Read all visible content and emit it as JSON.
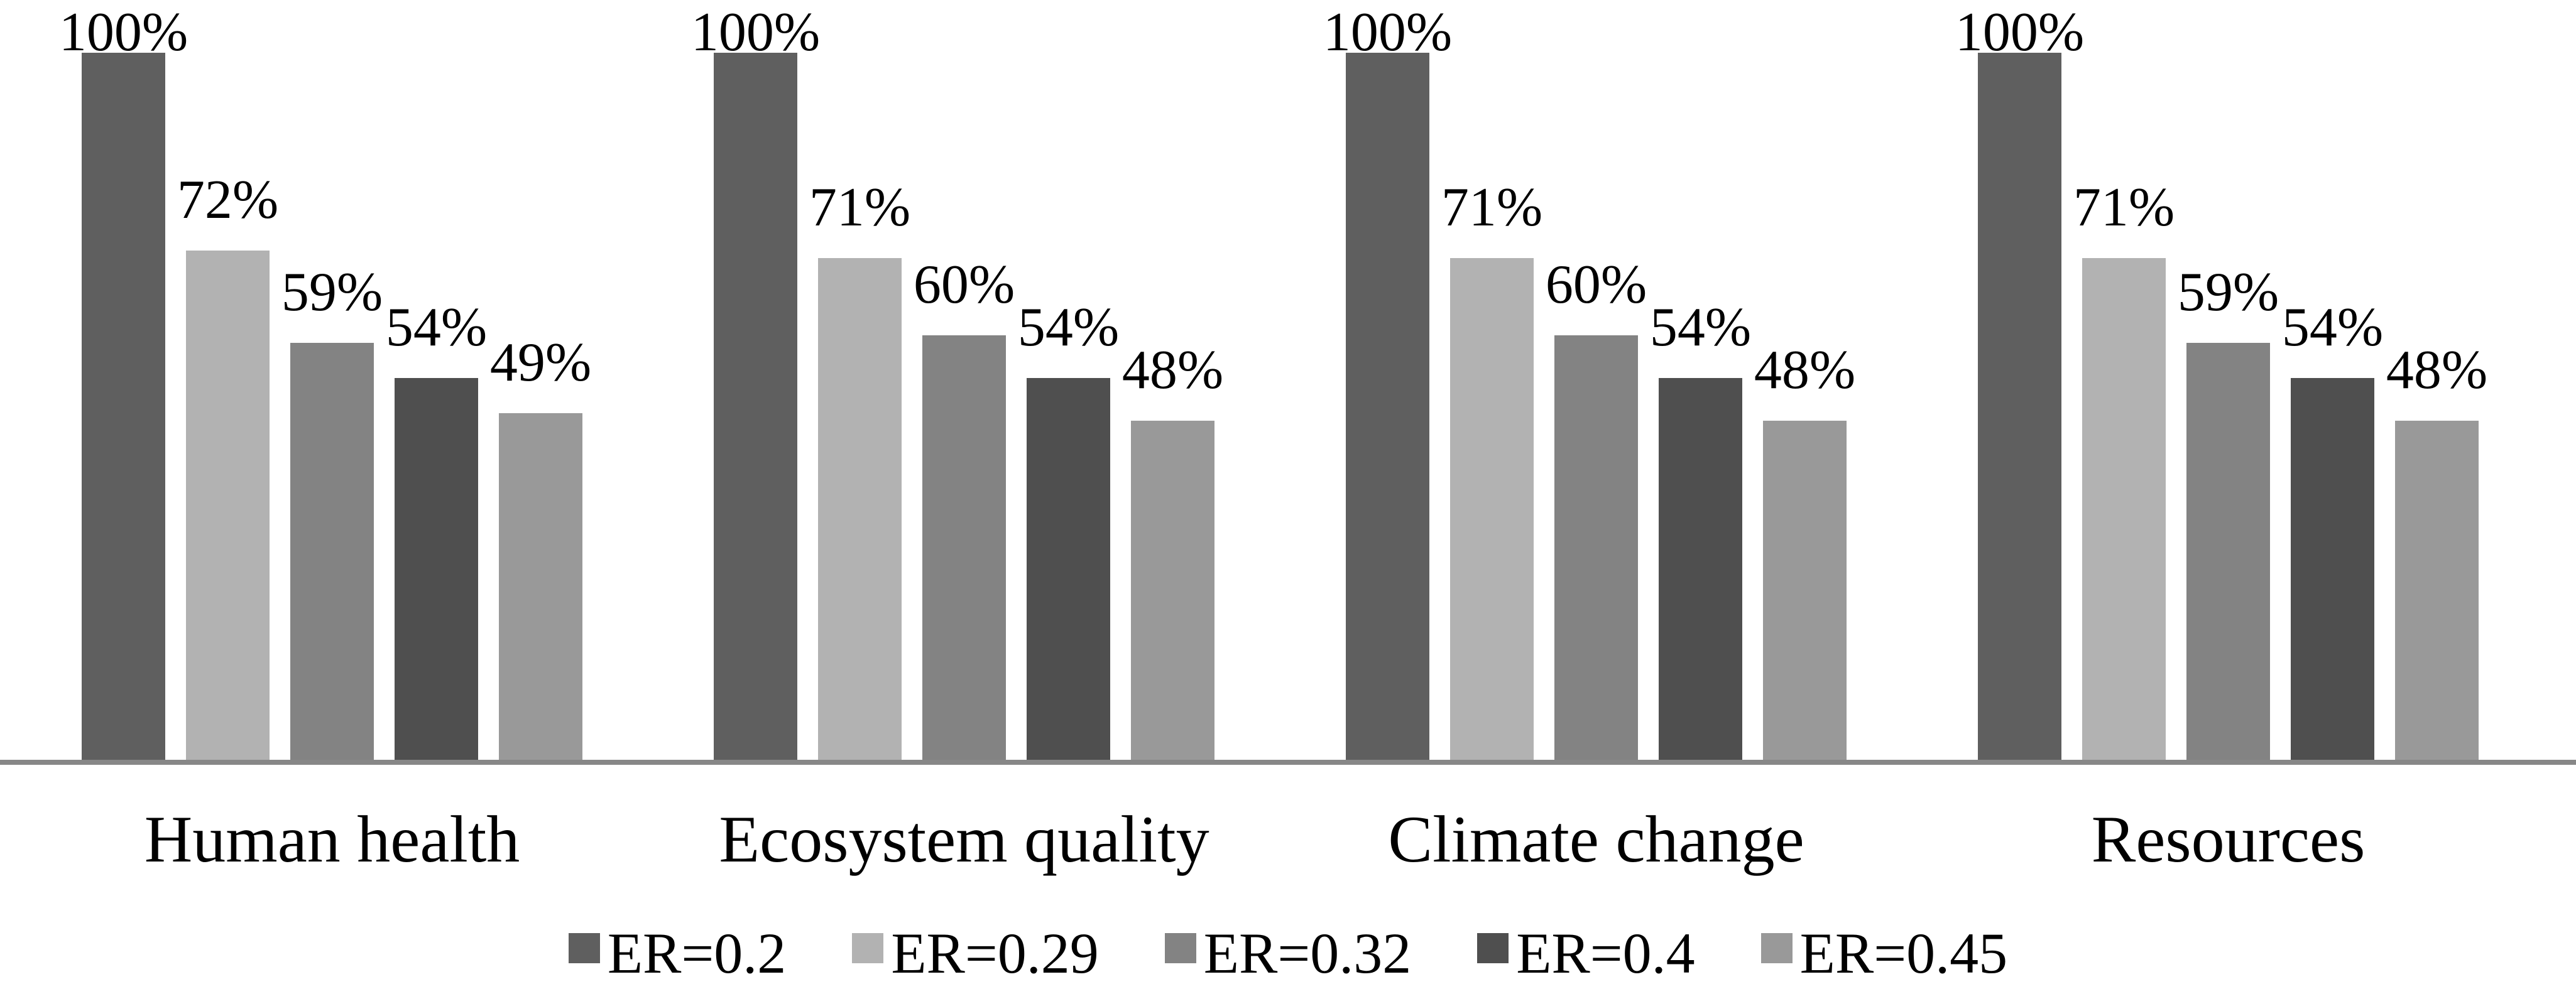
{
  "chart_data": {
    "type": "bar",
    "title": "",
    "xlabel": "",
    "ylabel": "",
    "ylim": [
      0,
      100
    ],
    "grid": false,
    "legend_position": "bottom",
    "axis_color": "#878787",
    "background_color": "#ffffff",
    "categories": [
      "Human health",
      "Ecosystem quality",
      "Climate change",
      "Resources"
    ],
    "series": [
      {
        "name": "ER=0.2",
        "color": "#5f5f5f",
        "values": [
          100,
          100,
          100,
          100
        ]
      },
      {
        "name": "ER=0.29",
        "color": "#b2b2b2",
        "values": [
          72,
          71,
          71,
          71
        ]
      },
      {
        "name": "ER=0.32",
        "color": "#838383",
        "values": [
          59,
          60,
          60,
          59
        ]
      },
      {
        "name": "ER=0.4",
        "color": "#4f4f4f",
        "values": [
          54,
          54,
          54,
          54
        ]
      },
      {
        "name": "ER=0.45",
        "color": "#999999",
        "values": [
          49,
          48,
          48,
          48
        ]
      }
    ],
    "data_labels": [
      [
        "100%",
        "72%",
        "59%",
        "54%",
        "49%"
      ],
      [
        "100%",
        "71%",
        "60%",
        "54%",
        "48%"
      ],
      [
        "100%",
        "71%",
        "60%",
        "54%",
        "48%"
      ],
      [
        "100%",
        "71%",
        "59%",
        "54%",
        "48%"
      ]
    ]
  }
}
